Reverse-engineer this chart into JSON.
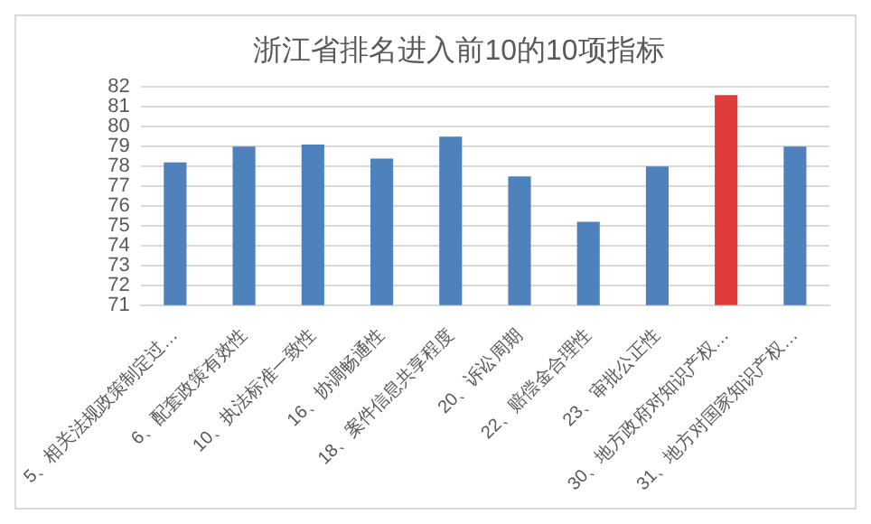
{
  "chart_data": {
    "type": "bar",
    "title": "浙江省排名进入前10的10项指标",
    "categories": [
      "5、相关法规政策制定过…",
      "6、配套政策有效性",
      "10、执法标准一致性",
      "16、协调畅通性",
      "18、案件信息共享程度",
      "20、诉讼周期",
      "22、赔偿金合理性",
      "23、审批公正性",
      "30、地方政府对知识产权…",
      "31、地方对国家知识产权…"
    ],
    "values": [
      78.2,
      79.0,
      79.1,
      78.4,
      79.5,
      77.5,
      75.2,
      78.0,
      81.6,
      79.0
    ],
    "colors": [
      "#4f81bd",
      "#4f81bd",
      "#4f81bd",
      "#4f81bd",
      "#4f81bd",
      "#4f81bd",
      "#4f81bd",
      "#4f81bd",
      "#e03c3c",
      "#4f81bd"
    ],
    "ylim": [
      71,
      82
    ],
    "yticks": [
      71,
      72,
      73,
      74,
      75,
      76,
      77,
      78,
      79,
      80,
      81,
      82
    ],
    "grid": "y"
  }
}
